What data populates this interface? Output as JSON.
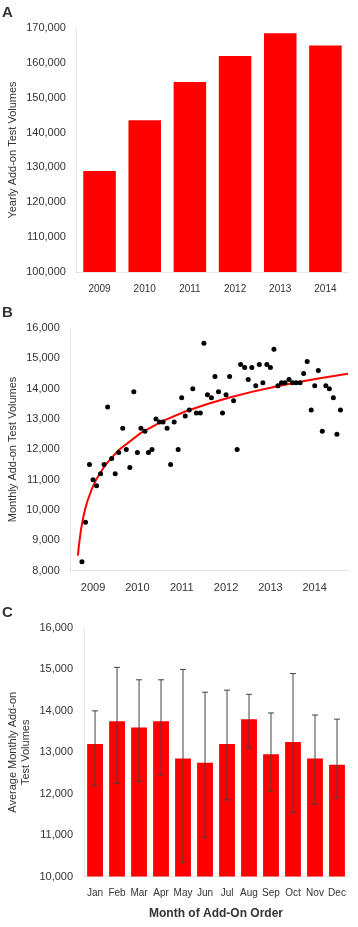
{
  "chart_data": [
    {
      "type": "bar",
      "title": "A",
      "categories": [
        "2009",
        "2010",
        "2011",
        "2012",
        "2013",
        "2014"
      ],
      "values": [
        129000,
        143500,
        154500,
        162000,
        168500,
        165000
      ],
      "color": "#FF0000",
      "ylabel": "Yearly Add-on Test Volumes",
      "ylim": [
        100000,
        170000
      ],
      "yticks": [
        {
          "value": 100000,
          "label": "100,000"
        },
        {
          "value": 110000,
          "label": "110,000"
        },
        {
          "value": 120000,
          "label": "120,000"
        },
        {
          "value": 130000,
          "label": "130,000"
        },
        {
          "value": 140000,
          "label": "140,000"
        },
        {
          "value": 150000,
          "label": "150,000"
        },
        {
          "value": 160000,
          "label": "160,000"
        },
        {
          "value": 170000,
          "label": "170,000"
        }
      ],
      "grid": false
    },
    {
      "type": "scatter",
      "title": "B",
      "ylabel": "Monthly Add-on Test Volumes",
      "xlim": [
        2008.5,
        2014.75
      ],
      "xticks": [
        2009,
        2010,
        2011,
        2012,
        2013,
        2014
      ],
      "ylim": [
        8000,
        16000
      ],
      "yticks": [
        {
          "value": 8000,
          "label": "8,000"
        },
        {
          "value": 9000,
          "label": "9,000"
        },
        {
          "value": 10000,
          "label": "10,000"
        },
        {
          "value": 11000,
          "label": "11,000"
        },
        {
          "value": 12000,
          "label": "12,000"
        },
        {
          "value": 13000,
          "label": "13,000"
        },
        {
          "value": 14000,
          "label": "14,000"
        },
        {
          "value": 15000,
          "label": "15,000"
        },
        {
          "value": 16000,
          "label": "16,000"
        }
      ],
      "grid": false,
      "series": [
        {
          "type": "scatter",
          "color": "#000000",
          "x": [
            2008.75,
            2008.83,
            2008.92,
            2009.0,
            2009.08,
            2009.17,
            2009.25,
            2009.33,
            2009.42,
            2009.5,
            2009.58,
            2009.67,
            2009.75,
            2009.83,
            2009.92,
            2010.0,
            2010.08,
            2010.17,
            2010.25,
            2010.33,
            2010.42,
            2010.5,
            2010.58,
            2010.67,
            2010.75,
            2010.83,
            2010.92,
            2011.0,
            2011.08,
            2011.17,
            2011.25,
            2011.33,
            2011.42,
            2011.5,
            2011.58,
            2011.67,
            2011.75,
            2011.83,
            2011.92,
            2012.0,
            2012.08,
            2012.17,
            2012.25,
            2012.33,
            2012.42,
            2012.5,
            2012.58,
            2012.67,
            2012.75,
            2012.83,
            2012.92,
            2013.0,
            2013.08,
            2013.17,
            2013.25,
            2013.33,
            2013.42,
            2013.5,
            2013.58,
            2013.67,
            2013.75,
            2013.83,
            2013.92,
            2014.0,
            2014.08,
            2014.17,
            2014.25,
            2014.33,
            2014.42,
            2014.5,
            2014.58
          ],
          "values": [
            8300,
            9600,
            11500,
            11000,
            10800,
            11200,
            11500,
            13400,
            11700,
            11200,
            11900,
            12700,
            12000,
            11400,
            13900,
            11900,
            12700,
            12600,
            11900,
            12000,
            13000,
            12900,
            12900,
            12700,
            11500,
            12900,
            12000,
            13700,
            13100,
            13300,
            14000,
            13200,
            13200,
            15500,
            13800,
            13700,
            14400,
            13900,
            13200,
            13800,
            14400,
            13600,
            12000,
            14800,
            14700,
            14300,
            14700,
            14100,
            14800,
            14200,
            14800,
            14700,
            15300,
            14100,
            14200,
            14200,
            14300,
            14200,
            14200,
            14200,
            14500,
            14900,
            13300,
            14100,
            14600,
            12600,
            14100,
            14000,
            13700,
            12500,
            13300
          ]
        },
        {
          "type": "line",
          "color": "#FF0000",
          "x": [
            2008.66,
            2008.68,
            2008.73,
            2008.78,
            2008.83,
            2008.88,
            2008.98,
            2009.08,
            2009.28,
            2009.58,
            2010.08,
            2010.58,
            2011.08,
            2011.58,
            2012.08,
            2012.58,
            2013.08,
            2013.58,
            2014.08,
            2014.75
          ],
          "values": [
            8503,
            8811,
            9370,
            9766,
            10074,
            10325,
            10721,
            11029,
            11493,
            11984,
            12543,
            12940,
            13247,
            13498,
            13711,
            13895,
            14057,
            14203,
            14334,
            14492
          ]
        }
      ]
    },
    {
      "type": "bar",
      "title": "C",
      "categories": [
        "Jan",
        "Feb",
        "Mar",
        "Apr",
        "May",
        "Jun",
        "Jul",
        "Aug",
        "Sep",
        "Oct",
        "Nov",
        "Dec"
      ],
      "values": [
        13200,
        13750,
        13600,
        13750,
        12850,
        12750,
        13200,
        13800,
        12950,
        13250,
        12850,
        12700
      ],
      "errors_upper": [
        800,
        1300,
        1150,
        1000,
        2150,
        1700,
        1300,
        600,
        1000,
        1650,
        1050,
        1100
      ],
      "errors_lower": [
        1000,
        1500,
        1300,
        1300,
        2500,
        1800,
        1350,
        700,
        900,
        1700,
        1100,
        800
      ],
      "color": "#FF0000",
      "ylabel": "Average Monthly Add-on\nTest Volumes",
      "xlabel": "Month of Add-On Order",
      "ylim": [
        10000,
        16000
      ],
      "yticks": [
        {
          "value": 10000,
          "label": "10,000"
        },
        {
          "value": 11000,
          "label": "11,000"
        },
        {
          "value": 12000,
          "label": "12,000"
        },
        {
          "value": 13000,
          "label": "13,000"
        },
        {
          "value": 14000,
          "label": "14,000"
        },
        {
          "value": 15000,
          "label": "15,000"
        },
        {
          "value": 16000,
          "label": "16,000"
        }
      ],
      "grid": false
    }
  ]
}
